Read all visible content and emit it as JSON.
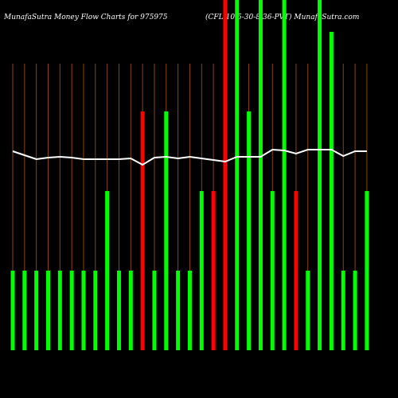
{
  "chart_data": {
    "type": "bar",
    "title": "MunafaSutra  Money Flow  Charts for 975975",
    "subtitle": "(CFL-10.5-30-8-36-PVT) MunafaSutra.com",
    "categories": [
      null,
      null,
      null,
      null,
      null,
      null,
      null,
      null,
      null,
      null,
      null,
      null,
      null,
      null,
      null,
      null,
      null,
      null,
      null,
      null,
      null,
      null,
      null,
      null,
      null,
      null,
      null,
      null,
      null,
      null,
      null
    ],
    "series": [
      {
        "type": "bar",
        "values": [
          1,
          1,
          1,
          1,
          1,
          1,
          1,
          1,
          2,
          1,
          1,
          3,
          1,
          3,
          1,
          1,
          2,
          2,
          4.4,
          4.4,
          3,
          4.4,
          2,
          4.4,
          2,
          1,
          4.4,
          4,
          1,
          1,
          2
        ],
        "colors": [
          "#00ff00",
          "#00ff00",
          "#00ff00",
          "#00ff00",
          "#00ff00",
          "#00ff00",
          "#00ff00",
          "#00ff00",
          "#00ff00",
          "#00ff00",
          "#00ff00",
          "#ff0000",
          "#00ff00",
          "#00ff00",
          "#00ff00",
          "#00ff00",
          "#00ff00",
          "#ff0000",
          "#ff0000",
          "#00ff00",
          "#00ff00",
          "#00ff00",
          "#00ff00",
          "#00ff00",
          "#ff0000",
          "#00ff00",
          "#00ff00",
          "#00ff00",
          "#00ff00",
          "#00ff00",
          "#00ff00"
        ]
      },
      {
        "type": "line",
        "color": "#ffffff",
        "values": [
          2.5,
          2.45,
          2.4,
          2.42,
          2.43,
          2.42,
          2.4,
          2.4,
          2.4,
          2.4,
          2.41,
          2.33,
          2.42,
          2.43,
          2.41,
          2.43,
          2.41,
          2.39,
          2.37,
          2.43,
          2.43,
          2.43,
          2.52,
          2.51,
          2.47,
          2.52,
          2.52,
          2.52,
          2.44,
          2.5,
          2.5
        ]
      }
    ],
    "ylim": [
      0,
      4.4
    ]
  }
}
